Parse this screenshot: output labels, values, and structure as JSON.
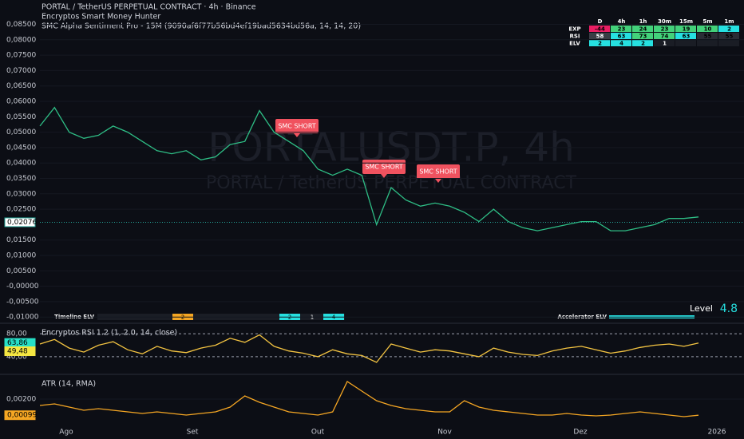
{
  "header": {
    "indicator1": "Encryptos Smart Money Hunter",
    "indicator2": "SMC Alpha Sentiment Pro - 15M (9090af6f77b56bd4ef19bad5634bd56a, 14, 14, 20)"
  },
  "watermark": {
    "symbol": "PORTALUSDT.P, 4h",
    "name": "PORTAL / TetherUS PERPETUAL CONTRACT"
  },
  "signals": [
    "SMC SHORT",
    "SMC SHORT",
    "SMC SHORT"
  ],
  "table": {
    "columns": [
      "D",
      "4h",
      "1h",
      "30m",
      "15m",
      "5m",
      "1m"
    ],
    "rows": [
      {
        "label": "EXP",
        "cells": [
          "-44",
          "23",
          "24",
          "23",
          "19",
          "10",
          "2"
        ]
      },
      {
        "label": "RSI",
        "cells": [
          "58",
          "63",
          "73",
          "74",
          "63",
          "55",
          "55"
        ]
      },
      {
        "label": "ELV",
        "cells": [
          "2",
          "4",
          "2",
          "1"
        ]
      }
    ]
  },
  "timeline": {
    "label": "Timeline ELV",
    "cells": [
      "2",
      "2",
      "1",
      "4"
    ]
  },
  "accelerator": {
    "label": "Accelerator ELV"
  },
  "level": {
    "label": "Level",
    "value": "4.8"
  },
  "time_axis": [
    "Ago",
    "Set",
    "Out",
    "Nov",
    "Dez",
    "2026"
  ],
  "chart_data": [
    {
      "type": "line",
      "title": "PORTAL / TetherUS PERPETUAL CONTRACT · 4h · Binance",
      "color": "#2ebd85",
      "values": [
        0.052,
        0.058,
        0.05,
        0.048,
        0.049,
        0.052,
        0.05,
        0.047,
        0.044,
        0.043,
        0.044,
        0.041,
        0.042,
        0.046,
        0.047,
        0.057,
        0.05,
        0.047,
        0.044,
        0.038,
        0.036,
        0.038,
        0.036,
        0.02,
        0.032,
        0.028,
        0.026,
        0.027,
        0.026,
        0.024,
        0.021,
        0.025,
        0.021,
        0.019,
        0.018,
        0.019,
        0.02,
        0.021,
        0.021,
        0.018,
        0.018,
        0.019,
        0.02,
        0.022,
        0.022,
        0.0225
      ],
      "ylim": [
        -0.0115,
        0.0885
      ],
      "yticks": [
        {
          "value": 0.085,
          "label": "0,08500"
        },
        {
          "value": 0.08,
          "label": "0,08000"
        },
        {
          "value": 0.075,
          "label": "0,07500"
        },
        {
          "value": 0.07,
          "label": "0,07000"
        },
        {
          "value": 0.065,
          "label": "0,06500"
        },
        {
          "value": 0.06,
          "label": "0,06000"
        },
        {
          "value": 0.055,
          "label": "0,05500"
        },
        {
          "value": 0.05,
          "label": "0,05000"
        },
        {
          "value": 0.045,
          "label": "0,04500"
        },
        {
          "value": 0.04,
          "label": "0,04000"
        },
        {
          "value": 0.035,
          "label": "0,03500"
        },
        {
          "value": 0.03,
          "label": "0,03000"
        },
        {
          "value": 0.025,
          "label": "0,02500"
        },
        {
          "value": 0.015,
          "label": "0,01500"
        },
        {
          "value": 0.01,
          "label": "0,01000"
        },
        {
          "value": 0.005,
          "label": "0,00500"
        },
        {
          "value": 0,
          "label": "-0,00000"
        },
        {
          "value": -0.005,
          "label": "-0,00500"
        },
        {
          "value": -0.01,
          "label": "-0,01000"
        }
      ],
      "current": [
        {
          "value": 0.02076,
          "label": "0,02076",
          "color": "#26a69a"
        }
      ]
    },
    {
      "type": "line",
      "title": "Encryptos RSI 1.2 (1, 2.0, 14, close)",
      "color": "#f5c542",
      "values": [
        62,
        70,
        55,
        48,
        60,
        66,
        52,
        45,
        58,
        50,
        47,
        55,
        60,
        72,
        65,
        78,
        58,
        50,
        46,
        40,
        52,
        45,
        42,
        30,
        62,
        55,
        48,
        52,
        50,
        45,
        40,
        55,
        48,
        44,
        42,
        50,
        55,
        58,
        52,
        46,
        50,
        56,
        60,
        62,
        58,
        63.86
      ],
      "ylim": [
        12,
        94
      ],
      "yticks": [
        {
          "value": 80,
          "label": "80,00"
        },
        {
          "value": 40,
          "label": "40,00"
        }
      ],
      "current": [
        {
          "value": 63.86,
          "label": "63,86",
          "color": "#26e0c8"
        },
        {
          "value": 49.48,
          "label": "49,48",
          "color": "#f5e642"
        }
      ]
    },
    {
      "type": "line",
      "title": "ATR (14, RMA)",
      "color": "#f5a623",
      "values": [
        0.0016,
        0.0017,
        0.0015,
        0.0013,
        0.0014,
        0.0013,
        0.0012,
        0.0011,
        0.0012,
        0.0011,
        0.001,
        0.0011,
        0.0012,
        0.0015,
        0.0022,
        0.0018,
        0.0015,
        0.0012,
        0.0011,
        0.001,
        0.0012,
        0.0031,
        0.0025,
        0.0019,
        0.0016,
        0.0014,
        0.0013,
        0.0012,
        0.0012,
        0.0019,
        0.0015,
        0.0013,
        0.0012,
        0.0011,
        0.001,
        0.001,
        0.0011,
        0.001,
        0.00095,
        0.001,
        0.0011,
        0.0012,
        0.0011,
        0.001,
        0.0009,
        0.00099
      ],
      "ylim": [
        0.0005,
        0.0034
      ],
      "yticks": [
        {
          "value": 0.002,
          "label": "0,00200"
        }
      ],
      "current": [
        {
          "value": 0.00099,
          "label": "0,00099",
          "color": "#f5a623"
        }
      ]
    }
  ]
}
